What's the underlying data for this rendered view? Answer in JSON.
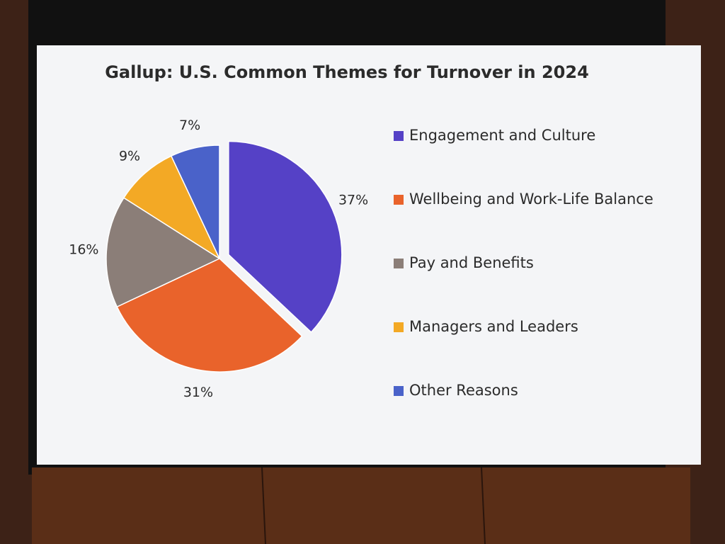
{
  "chart_data": {
    "type": "pie",
    "title": "Gallup: U.S. Common Themes for Turnover in 2024",
    "categories": [
      "Engagement and Culture",
      "Wellbeing and Work-Life Balance",
      "Pay and Benefits",
      "Managers and Leaders",
      "Other Reasons"
    ],
    "values": [
      37,
      31,
      16,
      9,
      7
    ],
    "value_labels": [
      "37%",
      "31%",
      "16%",
      "9%",
      "7%"
    ],
    "colors": [
      "#5541c6",
      "#e9632b",
      "#8b7e78",
      "#f3a925",
      "#4a62c9"
    ]
  }
}
